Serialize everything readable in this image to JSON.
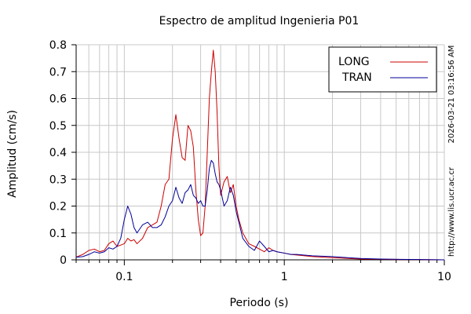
{
  "chart_data": {
    "type": "line",
    "title": "Espectro de amplitud Ingenieria P01",
    "xlabel": "Periodo (s)",
    "ylabel": "Amplitud (cm/s)",
    "x_scale": "log",
    "xlim": [
      0.05,
      10
    ],
    "ylim": [
      0,
      0.8
    ],
    "grid": true,
    "legend_position": "top-right",
    "x_ticks": [
      {
        "value": 0.1,
        "label": "0.1"
      },
      {
        "value": 1,
        "label": "1"
      },
      {
        "value": 10,
        "label": "10"
      }
    ],
    "y_ticks": [
      {
        "value": 0,
        "label": "0"
      },
      {
        "value": 0.1,
        "label": "0.1"
      },
      {
        "value": 0.2,
        "label": "0.2"
      },
      {
        "value": 0.3,
        "label": "0.3"
      },
      {
        "value": 0.4,
        "label": "0.4"
      },
      {
        "value": 0.5,
        "label": "0.5"
      },
      {
        "value": 0.6,
        "label": "0.6"
      },
      {
        "value": 0.7,
        "label": "0.7"
      },
      {
        "value": 0.8,
        "label": "0.8"
      }
    ],
    "series": [
      {
        "name": "LONG",
        "color": "#cc0000",
        "points": [
          [
            0.05,
            0.01
          ],
          [
            0.055,
            0.02
          ],
          [
            0.06,
            0.035
          ],
          [
            0.065,
            0.04
          ],
          [
            0.07,
            0.03
          ],
          [
            0.075,
            0.035
          ],
          [
            0.08,
            0.06
          ],
          [
            0.085,
            0.07
          ],
          [
            0.09,
            0.05
          ],
          [
            0.095,
            0.055
          ],
          [
            0.1,
            0.06
          ],
          [
            0.105,
            0.08
          ],
          [
            0.11,
            0.07
          ],
          [
            0.115,
            0.075
          ],
          [
            0.12,
            0.06
          ],
          [
            0.13,
            0.08
          ],
          [
            0.14,
            0.12
          ],
          [
            0.15,
            0.13
          ],
          [
            0.16,
            0.14
          ],
          [
            0.17,
            0.2
          ],
          [
            0.18,
            0.28
          ],
          [
            0.19,
            0.3
          ],
          [
            0.2,
            0.45
          ],
          [
            0.21,
            0.54
          ],
          [
            0.22,
            0.45
          ],
          [
            0.23,
            0.38
          ],
          [
            0.24,
            0.37
          ],
          [
            0.25,
            0.5
          ],
          [
            0.26,
            0.48
          ],
          [
            0.27,
            0.42
          ],
          [
            0.28,
            0.26
          ],
          [
            0.29,
            0.15
          ],
          [
            0.3,
            0.09
          ],
          [
            0.31,
            0.1
          ],
          [
            0.32,
            0.2
          ],
          [
            0.33,
            0.4
          ],
          [
            0.34,
            0.6
          ],
          [
            0.35,
            0.7
          ],
          [
            0.36,
            0.78
          ],
          [
            0.37,
            0.7
          ],
          [
            0.38,
            0.55
          ],
          [
            0.39,
            0.35
          ],
          [
            0.4,
            0.24
          ],
          [
            0.42,
            0.29
          ],
          [
            0.44,
            0.31
          ],
          [
            0.46,
            0.25
          ],
          [
            0.48,
            0.28
          ],
          [
            0.5,
            0.2
          ],
          [
            0.52,
            0.15
          ],
          [
            0.55,
            0.1
          ],
          [
            0.6,
            0.06
          ],
          [
            0.65,
            0.05
          ],
          [
            0.7,
            0.04
          ],
          [
            0.75,
            0.03
          ],
          [
            0.8,
            0.045
          ],
          [
            0.85,
            0.035
          ],
          [
            0.9,
            0.03
          ],
          [
            1.0,
            0.025
          ],
          [
            1.1,
            0.02
          ],
          [
            1.2,
            0.018
          ],
          [
            1.5,
            0.012
          ],
          [
            2.0,
            0.008
          ],
          [
            2.5,
            0.005
          ],
          [
            3.0,
            0.003
          ],
          [
            4.0,
            0.002
          ],
          [
            5.0,
            0.001
          ],
          [
            7.0,
            0.001
          ],
          [
            10.0,
            0.0
          ]
        ]
      },
      {
        "name": "TRAN",
        "color": "#000099",
        "points": [
          [
            0.05,
            0.01
          ],
          [
            0.055,
            0.012
          ],
          [
            0.06,
            0.02
          ],
          [
            0.065,
            0.03
          ],
          [
            0.07,
            0.025
          ],
          [
            0.075,
            0.03
          ],
          [
            0.08,
            0.045
          ],
          [
            0.085,
            0.04
          ],
          [
            0.09,
            0.05
          ],
          [
            0.095,
            0.08
          ],
          [
            0.1,
            0.15
          ],
          [
            0.105,
            0.2
          ],
          [
            0.11,
            0.17
          ],
          [
            0.115,
            0.12
          ],
          [
            0.12,
            0.1
          ],
          [
            0.13,
            0.13
          ],
          [
            0.14,
            0.14
          ],
          [
            0.15,
            0.12
          ],
          [
            0.16,
            0.12
          ],
          [
            0.17,
            0.13
          ],
          [
            0.18,
            0.16
          ],
          [
            0.19,
            0.2
          ],
          [
            0.2,
            0.22
          ],
          [
            0.21,
            0.27
          ],
          [
            0.22,
            0.23
          ],
          [
            0.23,
            0.21
          ],
          [
            0.24,
            0.25
          ],
          [
            0.25,
            0.26
          ],
          [
            0.26,
            0.28
          ],
          [
            0.27,
            0.24
          ],
          [
            0.28,
            0.23
          ],
          [
            0.29,
            0.21
          ],
          [
            0.3,
            0.22
          ],
          [
            0.31,
            0.2
          ],
          [
            0.32,
            0.2
          ],
          [
            0.33,
            0.26
          ],
          [
            0.34,
            0.34
          ],
          [
            0.35,
            0.37
          ],
          [
            0.36,
            0.36
          ],
          [
            0.37,
            0.32
          ],
          [
            0.38,
            0.29
          ],
          [
            0.39,
            0.28
          ],
          [
            0.4,
            0.26
          ],
          [
            0.42,
            0.2
          ],
          [
            0.44,
            0.22
          ],
          [
            0.46,
            0.27
          ],
          [
            0.48,
            0.24
          ],
          [
            0.5,
            0.18
          ],
          [
            0.52,
            0.14
          ],
          [
            0.55,
            0.08
          ],
          [
            0.6,
            0.05
          ],
          [
            0.65,
            0.035
          ],
          [
            0.7,
            0.07
          ],
          [
            0.75,
            0.05
          ],
          [
            0.8,
            0.03
          ],
          [
            0.85,
            0.035
          ],
          [
            0.9,
            0.03
          ],
          [
            1.0,
            0.025
          ],
          [
            1.1,
            0.02
          ],
          [
            1.2,
            0.02
          ],
          [
            1.5,
            0.015
          ],
          [
            2.0,
            0.012
          ],
          [
            2.5,
            0.008
          ],
          [
            3.0,
            0.005
          ],
          [
            4.0,
            0.003
          ],
          [
            5.0,
            0.002
          ],
          [
            7.0,
            0.001
          ],
          [
            10.0,
            0.0
          ]
        ]
      }
    ]
  },
  "side_text": {
    "timestamp": "2026-03-21 03:16:56 AM",
    "url": "http://www.lis.ucr.ac.cr"
  }
}
